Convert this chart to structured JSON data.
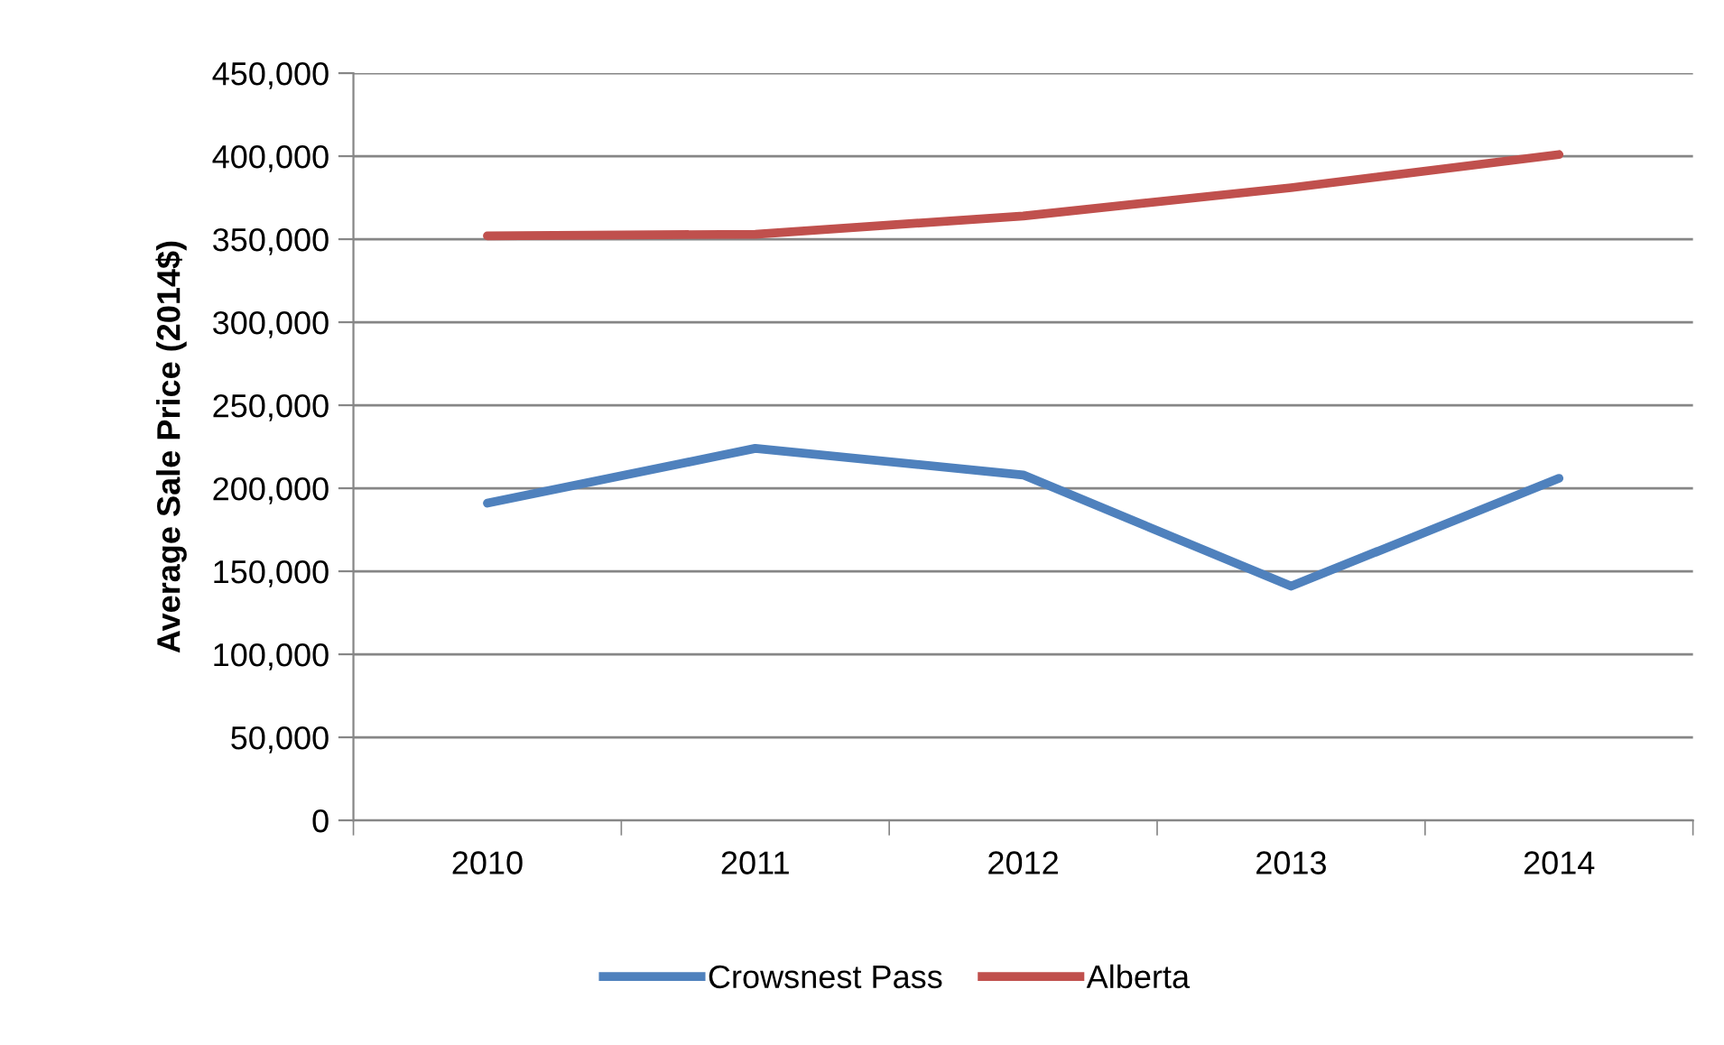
{
  "chart_data": {
    "type": "line",
    "ylabel": "Average Sale Price (2014$)",
    "categories": [
      "2010",
      "2011",
      "2012",
      "2013",
      "2014"
    ],
    "series": [
      {
        "name": "Crowsnest Pass",
        "color": "#4f81bd",
        "values": [
          191000,
          224000,
          208000,
          141000,
          206000
        ]
      },
      {
        "name": "Alberta",
        "color": "#c0504d",
        "values": [
          352000,
          353000,
          364000,
          381000,
          401000
        ]
      }
    ],
    "ylim": [
      0,
      450000
    ],
    "yticks": [
      {
        "value": 0,
        "label": "0"
      },
      {
        "value": 50000,
        "label": "50,000"
      },
      {
        "value": 100000,
        "label": "100,000"
      },
      {
        "value": 150000,
        "label": "150,000"
      },
      {
        "value": 200000,
        "label": "200,000"
      },
      {
        "value": 250000,
        "label": "250,000"
      },
      {
        "value": 300000,
        "label": "300,000"
      },
      {
        "value": 350000,
        "label": "350,000"
      },
      {
        "value": 400000,
        "label": "400,000"
      },
      {
        "value": 450000,
        "label": "450,000"
      }
    ],
    "grid": "y",
    "legend": "bottom",
    "marker": "none",
    "line_style": "solid"
  }
}
